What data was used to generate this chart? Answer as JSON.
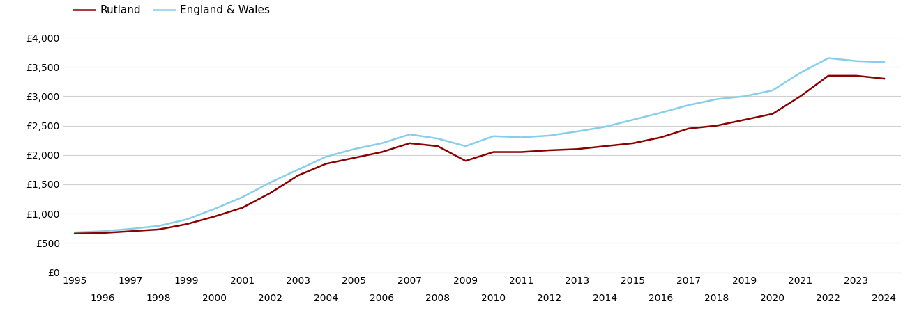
{
  "rutland_years": [
    1995,
    1996,
    1997,
    1998,
    1999,
    2000,
    2001,
    2002,
    2003,
    2004,
    2005,
    2006,
    2007,
    2008,
    2009,
    2010,
    2011,
    2012,
    2013,
    2014,
    2015,
    2016,
    2017,
    2018,
    2019,
    2020,
    2021,
    2022,
    2023,
    2024
  ],
  "rutland_values": [
    660,
    670,
    700,
    730,
    820,
    950,
    1100,
    1350,
    1650,
    1850,
    1950,
    2050,
    2200,
    2150,
    1900,
    2050,
    2050,
    2080,
    2100,
    2150,
    2200,
    2300,
    2450,
    2500,
    2600,
    2700,
    3000,
    3350,
    3350,
    3300
  ],
  "ew_years": [
    1995,
    1996,
    1997,
    1998,
    1999,
    2000,
    2001,
    2002,
    2003,
    2004,
    2005,
    2006,
    2007,
    2008,
    2009,
    2010,
    2011,
    2012,
    2013,
    2014,
    2015,
    2016,
    2017,
    2018,
    2019,
    2020,
    2021,
    2022,
    2023,
    2024
  ],
  "ew_values": [
    680,
    700,
    740,
    790,
    900,
    1080,
    1280,
    1530,
    1750,
    1970,
    2100,
    2200,
    2350,
    2280,
    2150,
    2320,
    2300,
    2330,
    2400,
    2480,
    2600,
    2720,
    2850,
    2950,
    3000,
    3100,
    3400,
    3650,
    3600,
    3580
  ],
  "rutland_color": "#8B0000",
  "ew_color": "#87CEEB",
  "rutland_label": "Rutland",
  "ew_label": "England & Wales",
  "ylim": [
    0,
    4000
  ],
  "yticks": [
    0,
    500,
    1000,
    1500,
    2000,
    2500,
    3000,
    3500,
    4000
  ],
  "ytick_labels": [
    "£0",
    "£500",
    "£1,000",
    "£1,500",
    "£2,000",
    "£2,500",
    "£3,000",
    "£3,500",
    "£4,000"
  ],
  "xlim_min": 1994.6,
  "xlim_max": 2024.6,
  "background_color": "#ffffff",
  "grid_color": "#d0d0d0",
  "line_width": 1.8,
  "legend_fontsize": 11,
  "tick_fontsize": 10
}
